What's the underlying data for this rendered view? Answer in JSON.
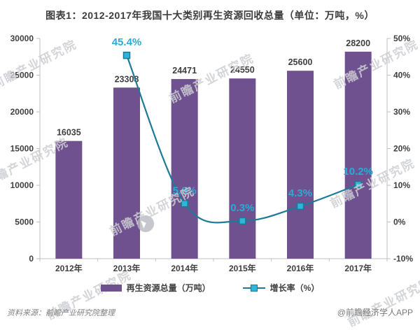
{
  "title": "图表1：2012-2017年我国十大类别再生资源回收总量（单位：万吨，%）",
  "footer": {
    "source": "资料来源：前瞻产业研究院整理",
    "credit": "@前瞻经济学人APP"
  },
  "watermark": {
    "text": "前瞻产业研究院",
    "logo": "play-arrow-circle-logo"
  },
  "legend": {
    "bar_label": "再生资源总量（万吨）",
    "line_label": "增长率（%）"
  },
  "colors": {
    "bar": "#6F5190",
    "line": "#1E7A96",
    "marker_fill": "#2EB5D8",
    "marker_border": "#1B7896",
    "pct_label": "#29ACD4",
    "text": "#3f3f3f",
    "axis": "#BFBFBF",
    "muted": "#808080"
  },
  "chart_data": {
    "type": "bar",
    "subtype": "bar+line combo",
    "title": "图表1：2012-2017年我国十大类别再生资源回收总量（单位：万吨，%）",
    "categories": [
      "2012年",
      "2013年",
      "2014年",
      "2015年",
      "2016年",
      "2017年"
    ],
    "series": [
      {
        "name": "再生资源总量（万吨）",
        "type": "bar",
        "axis": "left",
        "values": [
          16035,
          23308,
          24471,
          24550,
          25600,
          28200
        ]
      },
      {
        "name": "增长率（%）",
        "type": "line",
        "axis": "right",
        "values": [
          null,
          45.4,
          5.0,
          0.3,
          4.3,
          10.2
        ]
      }
    ],
    "left_axis": {
      "min": 0,
      "max": 30000,
      "step": 5000
    },
    "right_axis": {
      "min": -10,
      "max": 50,
      "step": 10,
      "suffix": "%"
    },
    "grid": false,
    "legend_position": "bottom",
    "data_labels": true
  }
}
